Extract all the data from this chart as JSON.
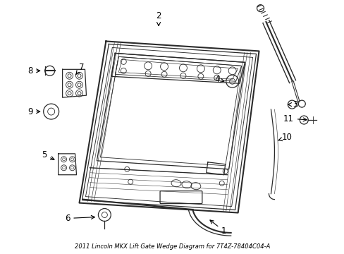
{
  "title": "2011 Lincoln MKX Lift Gate Wedge Diagram for 7T4Z-78404C04-A",
  "bg_color": "#ffffff",
  "line_color": "#2a2a2a",
  "text_color": "#000000",
  "fig_width": 4.89,
  "fig_height": 3.6,
  "dpi": 100
}
